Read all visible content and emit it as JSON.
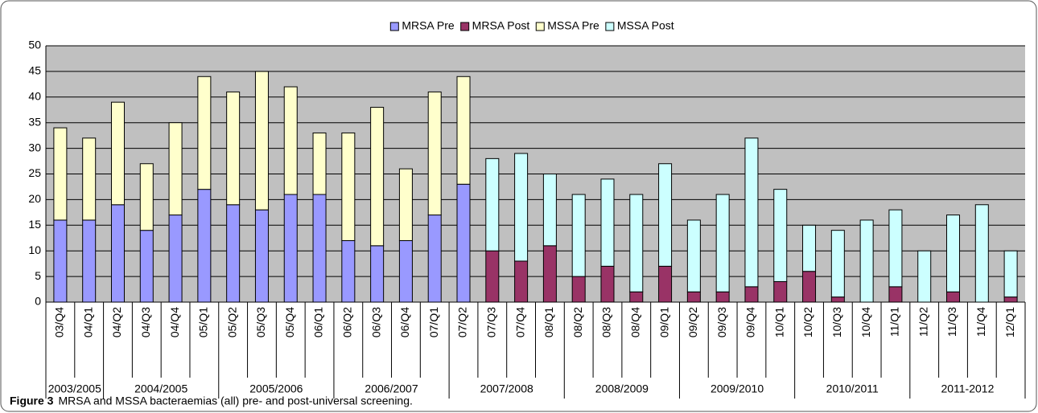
{
  "chart_data": {
    "type": "bar",
    "stacked": true,
    "categories": [
      "03/Q4",
      "04/Q1",
      "04/Q2",
      "04/Q3",
      "04/Q4",
      "05/Q1",
      "05/Q2",
      "05/Q3",
      "05/Q4",
      "06/Q1",
      "06/Q2",
      "06/Q3",
      "06/Q4",
      "07/Q1",
      "07/Q2",
      "07/Q3",
      "07/Q4",
      "08/Q1",
      "08/Q2",
      "08/Q3",
      "08/Q4",
      "09/Q1",
      "09/Q2",
      "09/Q3",
      "09/Q4",
      "10/Q1",
      "10/Q2",
      "10/Q3",
      "10/Q4",
      "11/Q1",
      "11/Q2",
      "11/Q3",
      "11/Q4",
      "12/Q1"
    ],
    "groups": [
      {
        "label": "2003/2005",
        "span": 2
      },
      {
        "label": "2004/2005",
        "span": 4
      },
      {
        "label": "2005/2006",
        "span": 4
      },
      {
        "label": "2006/2007",
        "span": 4
      },
      {
        "label": "2007/2008",
        "span": 4
      },
      {
        "label": "2008/2009",
        "span": 4
      },
      {
        "label": "2009/2010",
        "span": 4
      },
      {
        "label": "2010/2011",
        "span": 4
      },
      {
        "label": "2011-2012",
        "span": 4
      }
    ],
    "series": [
      {
        "name": "MRSA Pre",
        "color": "#9999ff",
        "values": [
          16,
          16,
          19,
          14,
          17,
          22,
          19,
          18,
          21,
          21,
          12,
          11,
          12,
          17,
          23,
          null,
          null,
          null,
          null,
          null,
          null,
          null,
          null,
          null,
          null,
          null,
          null,
          null,
          null,
          null,
          null,
          null,
          null,
          null
        ]
      },
      {
        "name": "MRSA Post",
        "color": "#993366",
        "values": [
          null,
          null,
          null,
          null,
          null,
          null,
          null,
          null,
          null,
          null,
          null,
          null,
          null,
          null,
          null,
          10,
          8,
          11,
          5,
          7,
          2,
          7,
          2,
          2,
          3,
          4,
          6,
          1,
          0,
          3,
          0,
          2,
          0,
          1
        ]
      },
      {
        "name": "MSSA Pre",
        "color": "#ffffcc",
        "values": [
          18,
          16,
          20,
          13,
          18,
          22,
          22,
          27,
          21,
          12,
          21,
          27,
          14,
          24,
          21,
          null,
          null,
          null,
          null,
          null,
          null,
          null,
          null,
          null,
          null,
          null,
          null,
          null,
          null,
          null,
          null,
          null,
          null,
          null
        ]
      },
      {
        "name": "MSSA Post",
        "color": "#ccffff",
        "values": [
          null,
          null,
          null,
          null,
          null,
          null,
          null,
          null,
          null,
          null,
          null,
          null,
          null,
          null,
          null,
          18,
          21,
          14,
          16,
          17,
          19,
          20,
          14,
          19,
          29,
          18,
          9,
          13,
          16,
          15,
          10,
          15,
          19,
          9
        ]
      }
    ],
    "ylim": [
      0,
      50
    ],
    "yticks": [
      0,
      5,
      10,
      15,
      20,
      25,
      30,
      35,
      40,
      45,
      50
    ],
    "grid": true,
    "legend": "top"
  },
  "caption": {
    "label": "Figure 3",
    "text": "MRSA and MSSA bacteraemias (all) pre- and post-universal screening."
  }
}
